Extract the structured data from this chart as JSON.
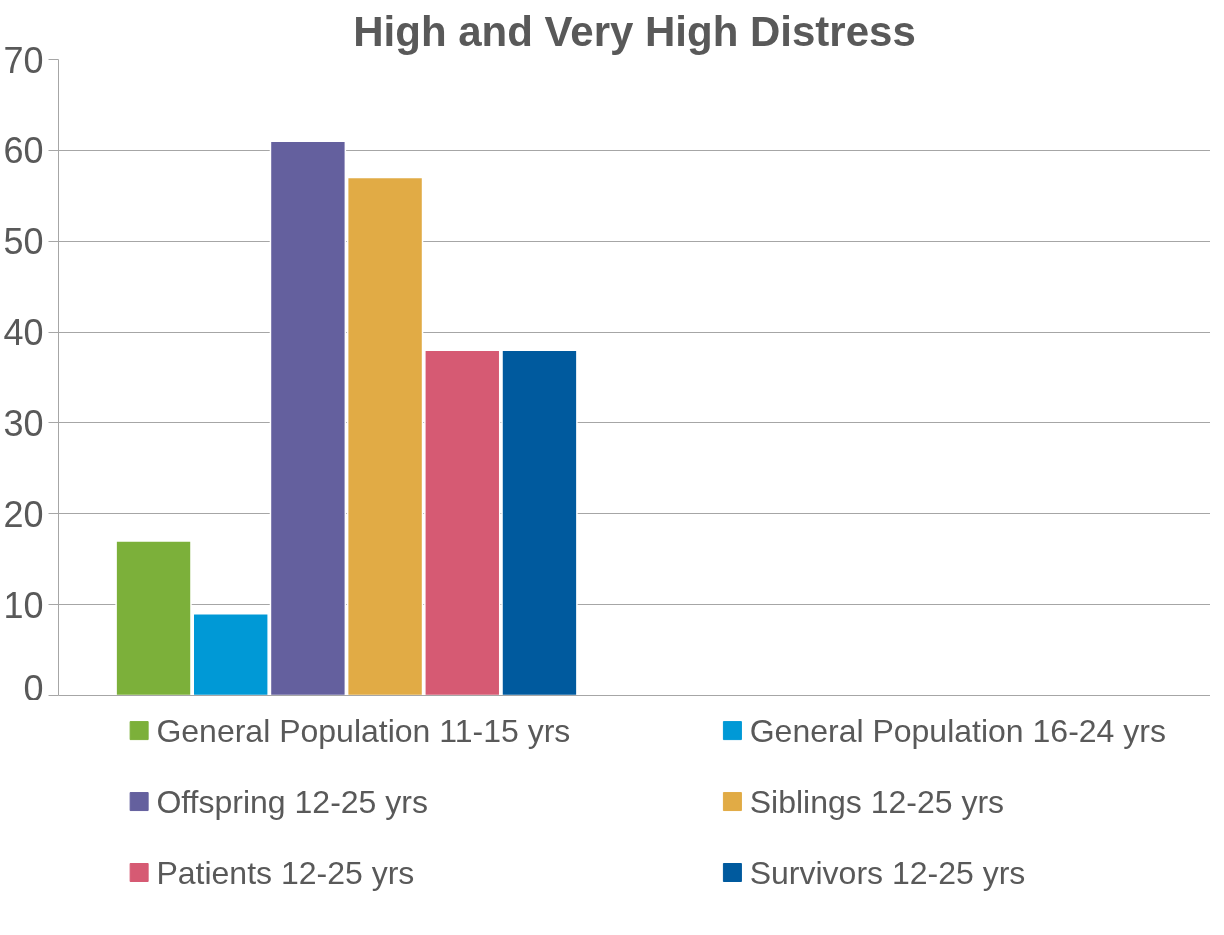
{
  "chart_data": {
    "type": "bar",
    "title": "High and Very High Distress",
    "categories": [
      null,
      null
    ],
    "series": [
      {
        "name": "General Population 11-15 yrs",
        "color": "#7cb03a",
        "values": [
          17,
          null
        ]
      },
      {
        "name": "General Population 16-24 yrs",
        "color": "#0099d6",
        "values": [
          9,
          null
        ]
      },
      {
        "name": "Offspring 12-25 yrs",
        "color": "#64609e",
        "values": [
          61,
          null
        ]
      },
      {
        "name": "Siblings 12-25 yrs",
        "color": "#e1ab45",
        "values": [
          57,
          null
        ]
      },
      {
        "name": "Patients 12-25 yrs",
        "color": "#d65a73",
        "values": [
          38,
          null
        ]
      },
      {
        "name": "Survivors 12-25 yrs",
        "color": "#005a9e",
        "values": [
          38,
          null
        ]
      }
    ],
    "ylim": [
      0,
      70
    ],
    "yticks": [
      0,
      10,
      20,
      30,
      40,
      50,
      60,
      70
    ],
    "grid": "y",
    "legend": "bottom"
  }
}
